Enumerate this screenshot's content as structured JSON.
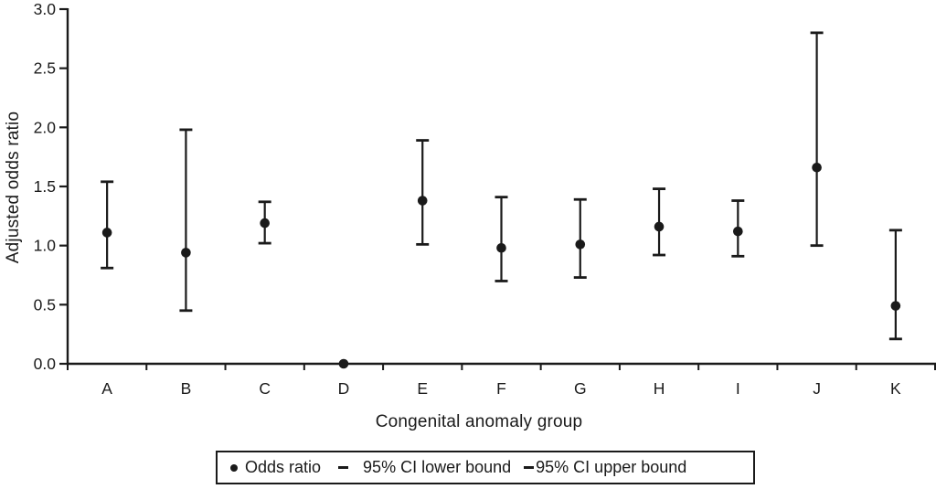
{
  "chart_data": {
    "type": "scatter",
    "subtype": "points-with-error-bars",
    "title": "",
    "xlabel": "Congenital anomaly group",
    "ylabel": "Adjusted odds ratio",
    "categories": [
      "A",
      "B",
      "C",
      "D",
      "E",
      "F",
      "G",
      "H",
      "I",
      "J",
      "K"
    ],
    "series": [
      {
        "name": "Odds ratio",
        "values": [
          1.11,
          0.94,
          1.19,
          0.0,
          1.38,
          0.98,
          1.01,
          1.16,
          1.12,
          1.66,
          0.49
        ]
      },
      {
        "name": "95% CI lower bound",
        "values": [
          0.81,
          0.45,
          1.02,
          null,
          1.01,
          0.7,
          0.73,
          0.92,
          0.91,
          1.0,
          0.21
        ]
      },
      {
        "name": "95% CI upper bound",
        "values": [
          1.54,
          1.98,
          1.37,
          null,
          1.89,
          1.41,
          1.39,
          1.48,
          1.38,
          2.8,
          1.13
        ]
      }
    ],
    "ylim": [
      0.0,
      3.0
    ],
    "ytick_step": 0.5,
    "ytick_labels": [
      "0.0",
      "0.5",
      "1.0",
      "1.5",
      "2.0",
      "2.5",
      "3.0"
    ],
    "grid": false,
    "legend_position": "bottom",
    "colors": {
      "marker": "#1a1a1a",
      "axis": "#1a1a1a",
      "background": "#ffffff"
    }
  },
  "axes": {
    "y_title": "Adjusted odds ratio",
    "x_title": "Congenital anomaly group"
  },
  "legend": {
    "items": [
      {
        "label": "Odds ratio",
        "marker": "dot"
      },
      {
        "label": "95% CI lower bound",
        "marker": "dash"
      },
      {
        "label": "95% CI upper bound",
        "marker": "dash"
      }
    ]
  }
}
